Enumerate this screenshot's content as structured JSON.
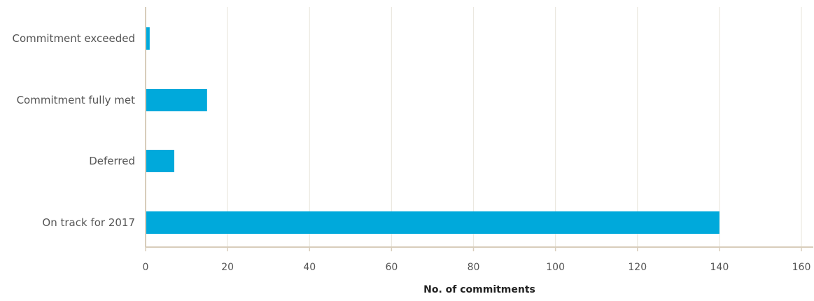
{
  "chart_data": {
    "type": "bar",
    "orientation": "horizontal",
    "categories": [
      "Commitment exceeded",
      "Commitment fully met",
      "Deferred",
      "On track for 2017"
    ],
    "values": [
      1,
      15,
      7,
      140
    ],
    "xlabel": "No. of commitments",
    "ylabel": "",
    "xlim": [
      0,
      160
    ],
    "xticks": [
      "0",
      "20",
      "40",
      "60",
      "80",
      "100",
      "120",
      "140",
      "160"
    ],
    "grid": true,
    "legend": "none",
    "bar_color": "#00a9db"
  }
}
